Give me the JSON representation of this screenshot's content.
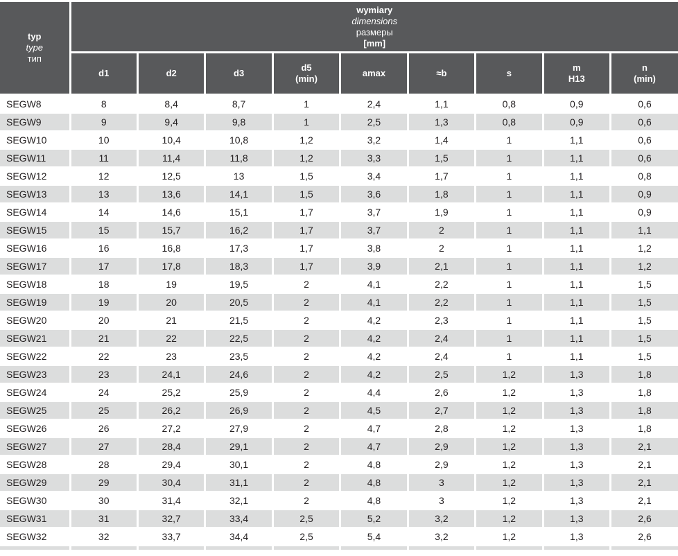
{
  "colors": {
    "header_bg": "#58595b",
    "header_text": "#ffffff",
    "stripe_bg": "#dcdddd",
    "row_bg": "#ffffff",
    "data_text": "#231f20"
  },
  "table": {
    "corner": {
      "lines": [
        "typ",
        "type",
        "тип"
      ]
    },
    "group": {
      "lines": [
        "wymiary",
        "dimensions",
        "размеры",
        "[mm]"
      ]
    },
    "columns": [
      {
        "id": "d1",
        "label": "d1",
        "sub": ""
      },
      {
        "id": "d2",
        "label": "d2",
        "sub": ""
      },
      {
        "id": "d3",
        "label": "d3",
        "sub": ""
      },
      {
        "id": "d5",
        "label": "d5",
        "sub": "(min)"
      },
      {
        "id": "amax",
        "label": "amax",
        "sub": ""
      },
      {
        "id": "b",
        "label": "≈b",
        "sub": ""
      },
      {
        "id": "s",
        "label": "s",
        "sub": ""
      },
      {
        "id": "m",
        "label": "m",
        "sub": "H13"
      },
      {
        "id": "n",
        "label": "n",
        "sub": "(min)"
      }
    ],
    "rows": [
      {
        "typ": "SEGW8",
        "values": [
          "8",
          "8,4",
          "8,7",
          "1",
          "2,4",
          "1,1",
          "0,8",
          "0,9",
          "0,6"
        ]
      },
      {
        "typ": "SEGW9",
        "values": [
          "9",
          "9,4",
          "9,8",
          "1",
          "2,5",
          "1,3",
          "0,8",
          "0,9",
          "0,6"
        ]
      },
      {
        "typ": "SEGW10",
        "values": [
          "10",
          "10,4",
          "10,8",
          "1,2",
          "3,2",
          "1,4",
          "1",
          "1,1",
          "0,6"
        ]
      },
      {
        "typ": "SEGW11",
        "values": [
          "11",
          "11,4",
          "11,8",
          "1,2",
          "3,3",
          "1,5",
          "1",
          "1,1",
          "0,6"
        ]
      },
      {
        "typ": "SEGW12",
        "values": [
          "12",
          "12,5",
          "13",
          "1,5",
          "3,4",
          "1,7",
          "1",
          "1,1",
          "0,8"
        ]
      },
      {
        "typ": "SEGW13",
        "values": [
          "13",
          "13,6",
          "14,1",
          "1,5",
          "3,6",
          "1,8",
          "1",
          "1,1",
          "0,9"
        ]
      },
      {
        "typ": "SEGW14",
        "values": [
          "14",
          "14,6",
          "15,1",
          "1,7",
          "3,7",
          "1,9",
          "1",
          "1,1",
          "0,9"
        ]
      },
      {
        "typ": "SEGW15",
        "values": [
          "15",
          "15,7",
          "16,2",
          "1,7",
          "3,7",
          "2",
          "1",
          "1,1",
          "1,1"
        ]
      },
      {
        "typ": "SEGW16",
        "values": [
          "16",
          "16,8",
          "17,3",
          "1,7",
          "3,8",
          "2",
          "1",
          "1,1",
          "1,2"
        ]
      },
      {
        "typ": "SEGW17",
        "values": [
          "17",
          "17,8",
          "18,3",
          "1,7",
          "3,9",
          "2,1",
          "1",
          "1,1",
          "1,2"
        ]
      },
      {
        "typ": "SEGW18",
        "values": [
          "18",
          "19",
          "19,5",
          "2",
          "4,1",
          "2,2",
          "1",
          "1,1",
          "1,5"
        ]
      },
      {
        "typ": "SEGW19",
        "values": [
          "19",
          "20",
          "20,5",
          "2",
          "4,1",
          "2,2",
          "1",
          "1,1",
          "1,5"
        ]
      },
      {
        "typ": "SEGW20",
        "values": [
          "20",
          "21",
          "21,5",
          "2",
          "4,2",
          "2,3",
          "1",
          "1,1",
          "1,5"
        ]
      },
      {
        "typ": "SEGW21",
        "values": [
          "21",
          "22",
          "22,5",
          "2",
          "4,2",
          "2,4",
          "1",
          "1,1",
          "1,5"
        ]
      },
      {
        "typ": "SEGW22",
        "values": [
          "22",
          "23",
          "23,5",
          "2",
          "4,2",
          "2,4",
          "1",
          "1,1",
          "1,5"
        ]
      },
      {
        "typ": "SEGW23",
        "values": [
          "23",
          "24,1",
          "24,6",
          "2",
          "4,2",
          "2,5",
          "1,2",
          "1,3",
          "1,8"
        ]
      },
      {
        "typ": "SEGW24",
        "values": [
          "24",
          "25,2",
          "25,9",
          "2",
          "4,4",
          "2,6",
          "1,2",
          "1,3",
          "1,8"
        ]
      },
      {
        "typ": "SEGW25",
        "values": [
          "25",
          "26,2",
          "26,9",
          "2",
          "4,5",
          "2,7",
          "1,2",
          "1,3",
          "1,8"
        ]
      },
      {
        "typ": "SEGW26",
        "values": [
          "26",
          "27,2",
          "27,9",
          "2",
          "4,7",
          "2,8",
          "1,2",
          "1,3",
          "1,8"
        ]
      },
      {
        "typ": "SEGW27",
        "values": [
          "27",
          "28,4",
          "29,1",
          "2",
          "4,7",
          "2,9",
          "1,2",
          "1,3",
          "2,1"
        ]
      },
      {
        "typ": "SEGW28",
        "values": [
          "28",
          "29,4",
          "30,1",
          "2",
          "4,8",
          "2,9",
          "1,2",
          "1,3",
          "2,1"
        ]
      },
      {
        "typ": "SEGW29",
        "values": [
          "29",
          "30,4",
          "31,1",
          "2",
          "4,8",
          "3",
          "1,2",
          "1,3",
          "2,1"
        ]
      },
      {
        "typ": "SEGW30",
        "values": [
          "30",
          "31,4",
          "32,1",
          "2",
          "4,8",
          "3",
          "1,2",
          "1,3",
          "2,1"
        ]
      },
      {
        "typ": "SEGW31",
        "values": [
          "31",
          "32,7",
          "33,4",
          "2,5",
          "5,2",
          "3,2",
          "1,2",
          "1,3",
          "2,6"
        ]
      },
      {
        "typ": "SEGW32",
        "values": [
          "32",
          "33,7",
          "34,4",
          "2,5",
          "5,4",
          "3,2",
          "1,2",
          "1,3",
          "2,6"
        ]
      }
    ]
  }
}
